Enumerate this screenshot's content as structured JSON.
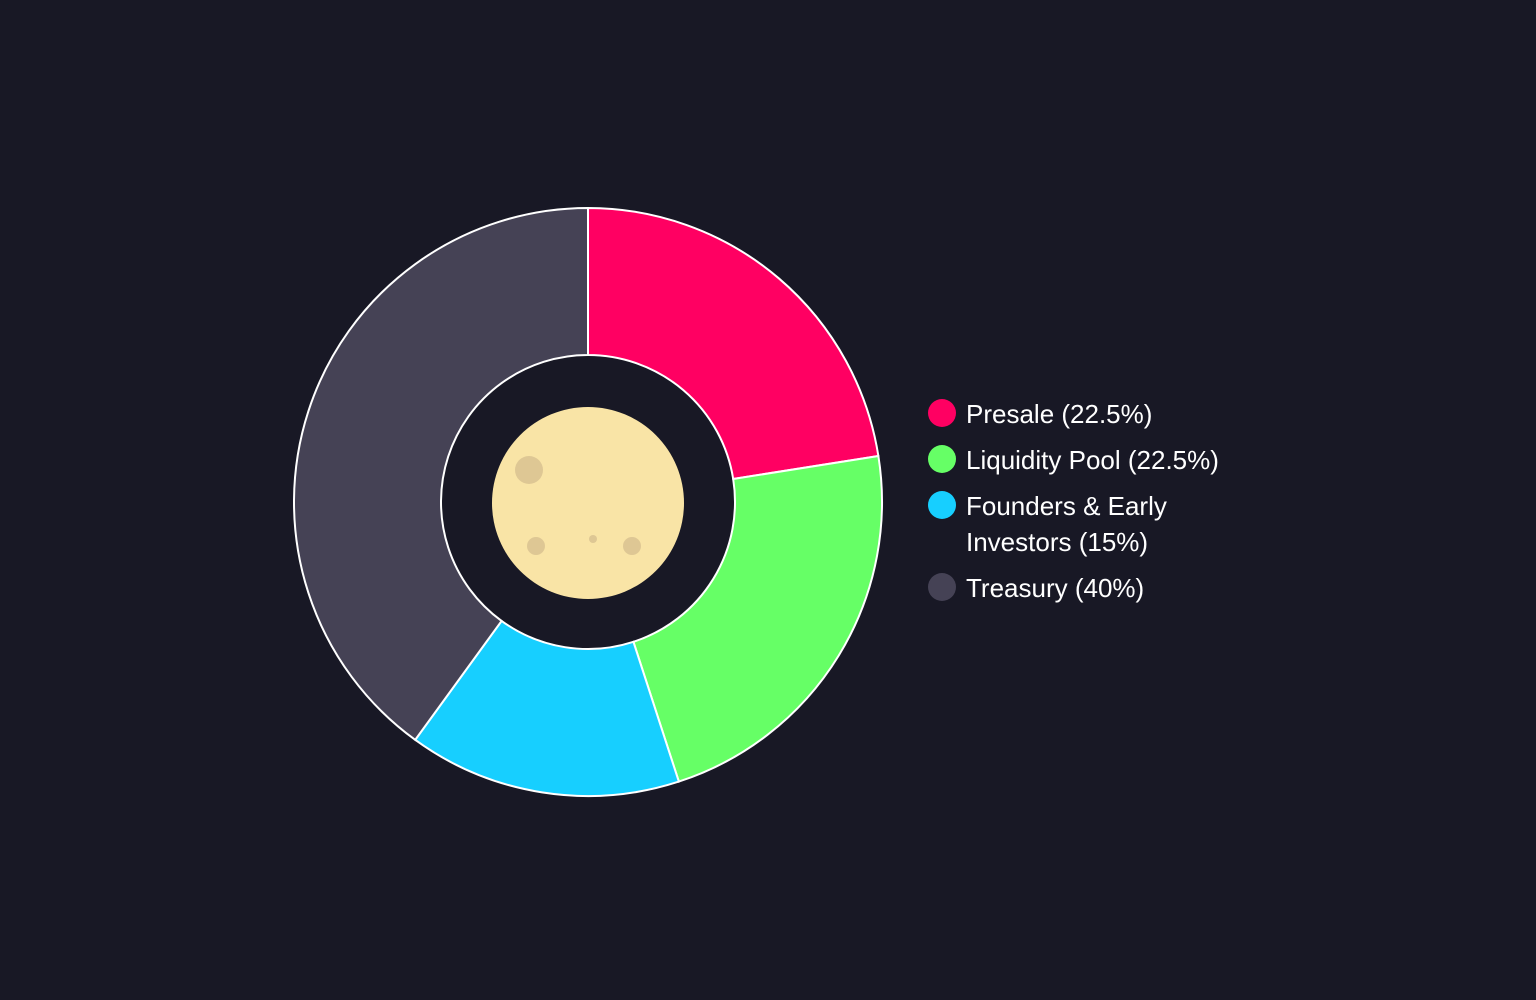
{
  "chart_data": {
    "type": "pie",
    "variant": "donut",
    "title": "",
    "legend_position": "right",
    "categories": [
      "Presale",
      "Liquidity Pool",
      "Founders & Early Investors",
      "Treasury"
    ],
    "values": [
      22.5,
      22.5,
      15,
      40
    ],
    "labels": [
      "Presale (22.5%)",
      "Liquidity Pool (22.5%)",
      "Founders & Early Investors (15%)",
      "Treasury (40%)"
    ],
    "colors": [
      "#ff0062",
      "#66ff66",
      "#17cfff",
      "#454255"
    ],
    "center_icon": "moon-icon"
  },
  "theme": {
    "background": "#181825",
    "slice_border": "#ffffff",
    "moon_fill": "#f9e4a6",
    "moon_crater": "#d9c290"
  }
}
